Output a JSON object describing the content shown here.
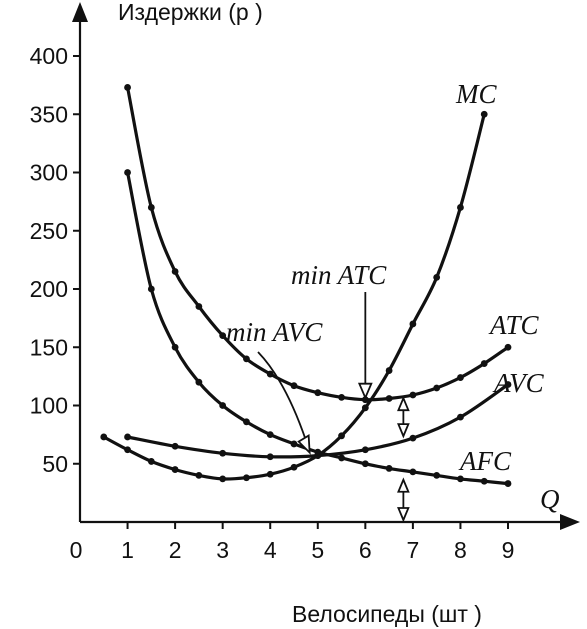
{
  "chart_data": {
    "type": "line",
    "title": "",
    "ylabel": "Издержки (р )",
    "xlabel": "Велосипеды (шт )",
    "x_axis_end_label": "Q",
    "xlim": [
      0,
      9
    ],
    "ylim": [
      0,
      400
    ],
    "x_ticks": [
      0,
      1,
      2,
      3,
      4,
      5,
      6,
      7,
      8,
      9
    ],
    "y_ticks": [
      50,
      100,
      150,
      200,
      250,
      300,
      350,
      400
    ],
    "grid": false,
    "series": [
      {
        "name": "MC",
        "x": [
          0.5,
          1,
          1.5,
          2,
          2.5,
          3,
          3.5,
          4,
          4.5,
          5,
          5.5,
          6,
          6.5,
          7,
          7.5,
          8,
          8.5
        ],
        "y": [
          73,
          62,
          52,
          45,
          40,
          37,
          38,
          41,
          47,
          57,
          74,
          98,
          130,
          170,
          210,
          270,
          350
        ]
      },
      {
        "name": "ATC",
        "x": [
          1,
          1.5,
          2,
          2.5,
          3,
          3.5,
          4,
          4.5,
          5,
          5.5,
          6,
          6.5,
          7,
          7.5,
          8,
          8.5,
          9
        ],
        "y": [
          373,
          270,
          215,
          185,
          160,
          140,
          127,
          117,
          111,
          107,
          105,
          106,
          109,
          115,
          124,
          136,
          150
        ]
      },
      {
        "name": "AVC",
        "x": [
          1,
          2,
          3,
          4,
          5,
          6,
          7,
          8,
          9
        ],
        "y": [
          73,
          65,
          59,
          56,
          57,
          62,
          72,
          90,
          118
        ]
      },
      {
        "name": "AFC",
        "x": [
          1,
          1.5,
          2,
          2.5,
          3,
          3.5,
          4,
          4.5,
          5,
          5.5,
          6,
          6.5,
          7,
          7.5,
          8,
          8.5,
          9
        ],
        "y": [
          300,
          200,
          150,
          120,
          100,
          86,
          75,
          67,
          60,
          55,
          50,
          46,
          43,
          40,
          37,
          35,
          33
        ]
      }
    ],
    "annotations": [
      {
        "text": "min ATC",
        "points_to": [
          6,
          105
        ]
      },
      {
        "text": "min AVC",
        "points_to": [
          4.85,
          57
        ]
      }
    ],
    "gap_markers": [
      {
        "x": 6.8,
        "from": 108,
        "to": 72
      },
      {
        "x": 6.8,
        "from": 38,
        "to": 0
      }
    ]
  }
}
